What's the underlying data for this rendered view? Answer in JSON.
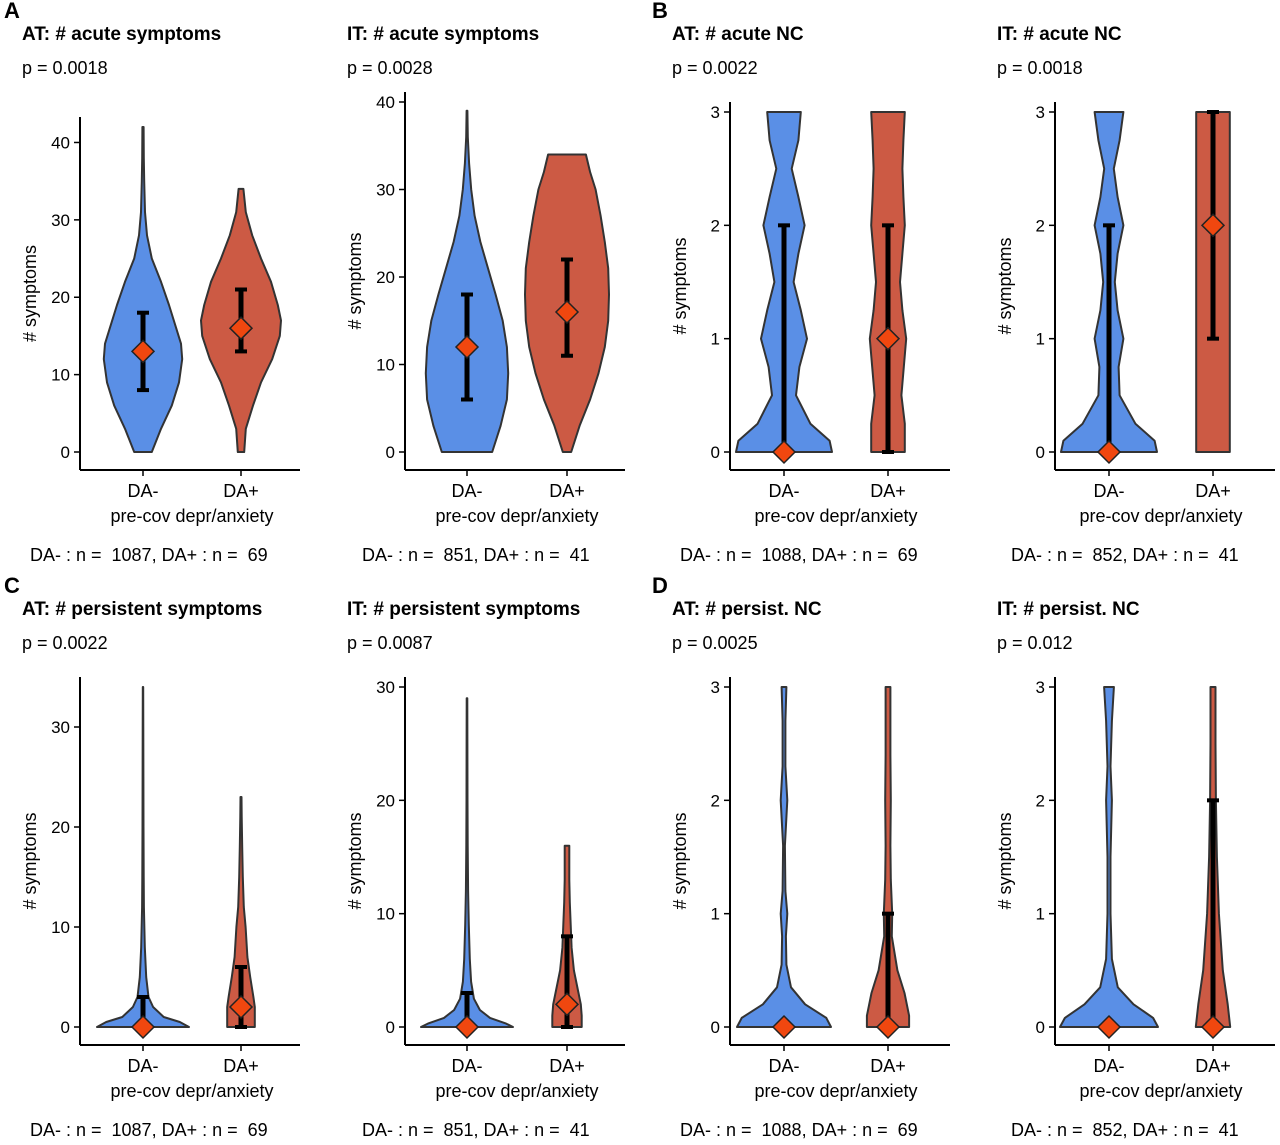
{
  "panel_letters": [
    "A",
    "B",
    "C",
    "D"
  ],
  "colors": {
    "da_minus": "#5a8fe6",
    "da_plus": "#cc5a44",
    "marker": "#f0470f",
    "outline": "#333333",
    "errorbar": "#000000"
  },
  "chart_data": [
    {
      "type": "violin",
      "title": "AT: # acute symptoms",
      "pvalue": "p = 0.0018",
      "ylabel": "# symptoms",
      "xlabel": "pre-cov depr/anxiety",
      "categories": [
        "DA-",
        "DA+"
      ],
      "yticks": [
        0,
        10,
        20,
        30,
        40
      ],
      "ylim": [
        0,
        42
      ],
      "ncount": "DA- : n =  1087, DA+ : n =  69",
      "groups": [
        {
          "name": "DA-",
          "median": 13,
          "lower": 8,
          "upper": 18,
          "max": 42,
          "density": [
            [
              0,
              0.22
            ],
            [
              3,
              0.45
            ],
            [
              6,
              0.72
            ],
            [
              9,
              0.9
            ],
            [
              12,
              0.98
            ],
            [
              14,
              0.95
            ],
            [
              16,
              0.83
            ],
            [
              19,
              0.65
            ],
            [
              22,
              0.45
            ],
            [
              25,
              0.22
            ],
            [
              28,
              0.1
            ],
            [
              31,
              0.05
            ],
            [
              35,
              0.03
            ],
            [
              38,
              0.02
            ],
            [
              42,
              0.015
            ]
          ]
        },
        {
          "name": "DA+",
          "median": 16,
          "lower": 13,
          "upper": 21,
          "max": 34,
          "density": [
            [
              0,
              0.08
            ],
            [
              3,
              0.12
            ],
            [
              6,
              0.3
            ],
            [
              9,
              0.5
            ],
            [
              12,
              0.78
            ],
            [
              15,
              0.97
            ],
            [
              17,
              1.0
            ],
            [
              19,
              0.92
            ],
            [
              22,
              0.75
            ],
            [
              25,
              0.5
            ],
            [
              28,
              0.28
            ],
            [
              31,
              0.12
            ],
            [
              34,
              0.06
            ]
          ]
        }
      ]
    },
    {
      "type": "violin",
      "title": "IT: # acute symptoms",
      "pvalue": "p = 0.0028",
      "ylabel": "# symptoms",
      "xlabel": "pre-cov depr/anxiety",
      "categories": [
        "DA-",
        "DA+"
      ],
      "yticks": [
        0,
        10,
        20,
        30,
        40
      ],
      "ylim": [
        0,
        40
      ],
      "ncount": "DA- : n =  851, DA+ : n =  41",
      "groups": [
        {
          "name": "DA-",
          "median": 12,
          "lower": 6,
          "upper": 18,
          "max": 39,
          "density": [
            [
              0,
              0.6
            ],
            [
              3,
              0.8
            ],
            [
              6,
              0.95
            ],
            [
              9,
              0.98
            ],
            [
              12,
              0.95
            ],
            [
              15,
              0.85
            ],
            [
              18,
              0.68
            ],
            [
              21,
              0.5
            ],
            [
              24,
              0.32
            ],
            [
              27,
              0.18
            ],
            [
              30,
              0.1
            ],
            [
              33,
              0.05
            ],
            [
              36,
              0.02
            ],
            [
              39,
              0.01
            ]
          ]
        },
        {
          "name": "DA+",
          "median": 16,
          "lower": 11,
          "upper": 22,
          "max": 34,
          "density": [
            [
              0,
              0.1
            ],
            [
              3,
              0.3
            ],
            [
              6,
              0.55
            ],
            [
              9,
              0.75
            ],
            [
              12,
              0.9
            ],
            [
              15,
              0.98
            ],
            [
              18,
              1.0
            ],
            [
              21,
              0.98
            ],
            [
              24,
              0.9
            ],
            [
              27,
              0.8
            ],
            [
              30,
              0.68
            ],
            [
              32,
              0.55
            ],
            [
              34,
              0.45
            ]
          ]
        }
      ]
    },
    {
      "type": "violin",
      "title": "AT: # acute NC",
      "pvalue": "p = 0.0022",
      "ylabel": "# symptoms",
      "xlabel": "pre-cov depr/anxiety",
      "categories": [
        "DA-",
        "DA+"
      ],
      "yticks": [
        0,
        1,
        2,
        3
      ],
      "ylim": [
        0,
        3
      ],
      "ncount": "DA- : n =  1088, DA+ : n =  69",
      "groups": [
        {
          "name": "DA-",
          "median": 0,
          "lower": 0,
          "upper": 2,
          "max": 3,
          "density": [
            [
              0,
              1.0
            ],
            [
              0.1,
              0.95
            ],
            [
              0.25,
              0.55
            ],
            [
              0.5,
              0.25
            ],
            [
              0.75,
              0.32
            ],
            [
              1.0,
              0.48
            ],
            [
              1.25,
              0.35
            ],
            [
              1.5,
              0.2
            ],
            [
              1.75,
              0.3
            ],
            [
              2.0,
              0.43
            ],
            [
              2.25,
              0.3
            ],
            [
              2.5,
              0.16
            ],
            [
              2.75,
              0.3
            ],
            [
              3.0,
              0.35
            ]
          ]
        },
        {
          "name": "DA+",
          "median": 1,
          "lower": 0,
          "upper": 2,
          "max": 3,
          "density": [
            [
              0,
              0.35
            ],
            [
              0.25,
              0.35
            ],
            [
              0.5,
              0.28
            ],
            [
              0.75,
              0.33
            ],
            [
              1.0,
              0.38
            ],
            [
              1.25,
              0.3
            ],
            [
              1.5,
              0.25
            ],
            [
              1.75,
              0.3
            ],
            [
              2.0,
              0.35
            ],
            [
              2.25,
              0.32
            ],
            [
              2.5,
              0.3
            ],
            [
              2.75,
              0.32
            ],
            [
              3.0,
              0.35
            ]
          ]
        }
      ]
    },
    {
      "type": "violin",
      "title": "IT: # acute NC",
      "pvalue": "p = 0.0018",
      "ylabel": "# symptoms",
      "xlabel": "pre-cov depr/anxiety",
      "categories": [
        "DA-",
        "DA+"
      ],
      "yticks": [
        0,
        1,
        2,
        3
      ],
      "ylim": [
        0,
        3
      ],
      "ncount": "DA- : n =  852, DA+ : n =  41",
      "groups": [
        {
          "name": "DA-",
          "median": 0,
          "lower": 0,
          "upper": 2,
          "max": 3,
          "density": [
            [
              0,
              1.0
            ],
            [
              0.1,
              0.95
            ],
            [
              0.25,
              0.55
            ],
            [
              0.5,
              0.22
            ],
            [
              0.75,
              0.2
            ],
            [
              1.0,
              0.3
            ],
            [
              1.25,
              0.18
            ],
            [
              1.5,
              0.12
            ],
            [
              1.75,
              0.18
            ],
            [
              2.0,
              0.3
            ],
            [
              2.25,
              0.18
            ],
            [
              2.5,
              0.1
            ],
            [
              2.75,
              0.22
            ],
            [
              3.0,
              0.3
            ]
          ]
        },
        {
          "name": "DA+",
          "median": 2,
          "lower": 1,
          "upper": 3,
          "max": 3,
          "density": [
            [
              0,
              0.35
            ],
            [
              0.5,
              0.35
            ],
            [
              1.0,
              0.35
            ],
            [
              1.5,
              0.35
            ],
            [
              2.0,
              0.35
            ],
            [
              2.5,
              0.35
            ],
            [
              3.0,
              0.35
            ]
          ]
        }
      ]
    },
    {
      "type": "violin",
      "title": "AT: # persistent symptoms",
      "pvalue": "p = 0.0022",
      "ylabel": "# symptoms",
      "xlabel": "pre-cov depr/anxiety",
      "categories": [
        "DA-",
        "DA+"
      ],
      "yticks": [
        0,
        10,
        20,
        30
      ],
      "ylim": [
        0,
        34
      ],
      "ncount": "DA- : n =  1087, DA+ : n =  69",
      "groups": [
        {
          "name": "DA-",
          "median": 0,
          "lower": 0,
          "upper": 3,
          "max": 34,
          "density": [
            [
              0,
              1.0
            ],
            [
              0.5,
              0.8
            ],
            [
              1,
              0.45
            ],
            [
              2,
              0.22
            ],
            [
              3,
              0.12
            ],
            [
              5,
              0.07
            ],
            [
              8,
              0.04
            ],
            [
              12,
              0.02
            ],
            [
              15,
              0.015
            ],
            [
              20,
              0.01
            ],
            [
              25,
              0.008
            ],
            [
              30,
              0.006
            ],
            [
              34,
              0.005
            ]
          ]
        },
        {
          "name": "DA+",
          "median": 2,
          "lower": 0,
          "upper": 6,
          "max": 23,
          "density": [
            [
              0,
              0.3
            ],
            [
              1,
              0.3
            ],
            [
              2,
              0.3
            ],
            [
              3,
              0.27
            ],
            [
              5,
              0.2
            ],
            [
              7,
              0.14
            ],
            [
              10,
              0.1
            ],
            [
              12,
              0.06
            ],
            [
              15,
              0.04
            ],
            [
              18,
              0.025
            ],
            [
              21,
              0.015
            ],
            [
              23,
              0.01
            ]
          ]
        }
      ]
    },
    {
      "type": "violin",
      "title": "IT: # persistent symptoms",
      "pvalue": "p = 0.0087",
      "ylabel": "# symptoms",
      "xlabel": "pre-cov depr/anxiety",
      "categories": [
        "DA-",
        "DA+"
      ],
      "yticks": [
        0,
        10,
        20,
        30
      ],
      "ylim": [
        0,
        30
      ],
      "ncount": "DA- : n =  851, DA+ : n =  41",
      "groups": [
        {
          "name": "DA-",
          "median": 0,
          "lower": 0,
          "upper": 3,
          "max": 29,
          "density": [
            [
              0,
              1.0
            ],
            [
              0.3,
              0.85
            ],
            [
              0.8,
              0.5
            ],
            [
              1.5,
              0.28
            ],
            [
              2.5,
              0.15
            ],
            [
              4,
              0.09
            ],
            [
              6,
              0.06
            ],
            [
              9,
              0.04
            ],
            [
              12,
              0.025
            ],
            [
              16,
              0.015
            ],
            [
              20,
              0.01
            ],
            [
              25,
              0.008
            ],
            [
              29,
              0.006
            ]
          ]
        },
        {
          "name": "DA+",
          "median": 2,
          "lower": 0,
          "upper": 8,
          "max": 16,
          "density": [
            [
              0,
              0.32
            ],
            [
              1,
              0.32
            ],
            [
              2,
              0.3
            ],
            [
              3,
              0.25
            ],
            [
              5,
              0.15
            ],
            [
              7,
              0.1
            ],
            [
              9,
              0.08
            ],
            [
              11,
              0.06
            ],
            [
              13,
              0.05
            ],
            [
              16,
              0.05
            ]
          ]
        }
      ]
    },
    {
      "type": "violin",
      "title": "AT: # persist. NC",
      "pvalue": "p = 0.0025",
      "ylabel": "# symptoms",
      "xlabel": "pre-cov depr/anxiety",
      "categories": [
        "DA-",
        "DA+"
      ],
      "yticks": [
        0,
        1,
        2,
        3
      ],
      "ylim": [
        0,
        3
      ],
      "ncount": "DA- : n =  1088, DA+ : n =  69",
      "groups": [
        {
          "name": "DA-",
          "median": 0,
          "lower": 0,
          "upper": 0,
          "max": 3,
          "density": [
            [
              0,
              1.0
            ],
            [
              0.08,
              0.9
            ],
            [
              0.2,
              0.45
            ],
            [
              0.35,
              0.15
            ],
            [
              0.55,
              0.05
            ],
            [
              0.8,
              0.04
            ],
            [
              1.0,
              0.07
            ],
            [
              1.2,
              0.03
            ],
            [
              1.6,
              0.02
            ],
            [
              2.0,
              0.07
            ],
            [
              2.3,
              0.03
            ],
            [
              2.7,
              0.03
            ],
            [
              3.0,
              0.05
            ]
          ]
        },
        {
          "name": "DA+",
          "median": 0,
          "lower": 0,
          "upper": 1,
          "max": 3,
          "density": [
            [
              0,
              0.45
            ],
            [
              0.1,
              0.45
            ],
            [
              0.3,
              0.35
            ],
            [
              0.5,
              0.2
            ],
            [
              0.8,
              0.08
            ],
            [
              1.0,
              0.09
            ],
            [
              1.3,
              0.06
            ],
            [
              1.6,
              0.05
            ],
            [
              2.0,
              0.06
            ],
            [
              2.4,
              0.05
            ],
            [
              2.7,
              0.05
            ],
            [
              3.0,
              0.05
            ]
          ]
        }
      ]
    },
    {
      "type": "violin",
      "title": "IT: # persist. NC",
      "pvalue": "p = 0.012",
      "ylabel": "# symptoms",
      "xlabel": "pre-cov depr/anxiety",
      "categories": [
        "DA-",
        "DA+"
      ],
      "yticks": [
        0,
        1,
        2,
        3
      ],
      "ylim": [
        0,
        3
      ],
      "ncount": "DA- : n =  852, DA+ : n =  41",
      "groups": [
        {
          "name": "DA-",
          "median": 0,
          "lower": 0,
          "upper": 0,
          "max": 3,
          "density": [
            [
              0,
              1.0
            ],
            [
              0.08,
              0.9
            ],
            [
              0.2,
              0.5
            ],
            [
              0.35,
              0.18
            ],
            [
              0.6,
              0.06
            ],
            [
              1.0,
              0.03
            ],
            [
              1.5,
              0.03
            ],
            [
              2.0,
              0.06
            ],
            [
              2.3,
              0.03
            ],
            [
              2.7,
              0.06
            ],
            [
              3.0,
              0.1
            ]
          ]
        },
        {
          "name": "DA+",
          "median": 0,
          "lower": 0,
          "upper": 2,
          "max": 3,
          "density": [
            [
              0,
              0.35
            ],
            [
              0.2,
              0.3
            ],
            [
              0.5,
              0.2
            ],
            [
              1.0,
              0.12
            ],
            [
              1.5,
              0.08
            ],
            [
              2.0,
              0.06
            ],
            [
              2.5,
              0.05
            ],
            [
              3.0,
              0.05
            ]
          ]
        }
      ]
    }
  ]
}
